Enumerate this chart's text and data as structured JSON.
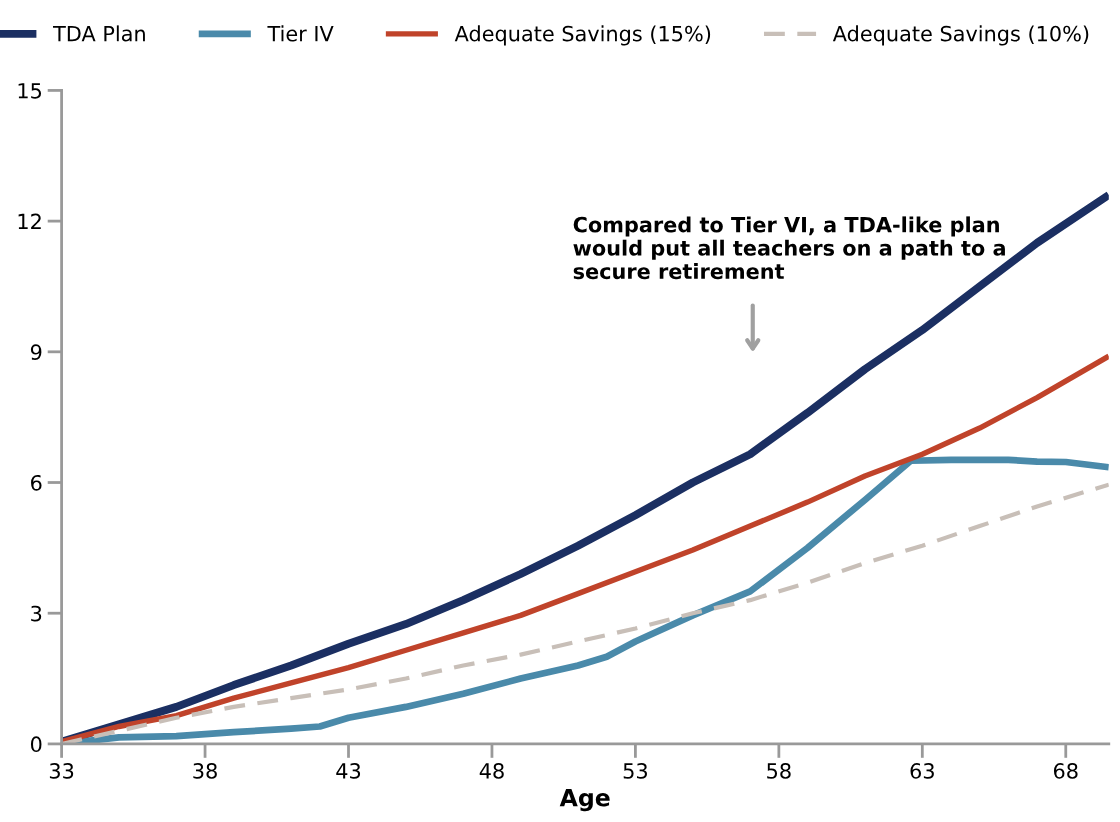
{
  "chart_data": {
    "type": "line",
    "xlabel": "Age",
    "xlim": [
      33,
      69.5
    ],
    "xticks": [
      33,
      38,
      43,
      48,
      53,
      58,
      63,
      68
    ],
    "ylim": [
      0,
      15
    ],
    "yticks": [
      0,
      3,
      6,
      9,
      12,
      15
    ],
    "grid": false,
    "legend": "top",
    "marker": "none",
    "annotations": [
      "Compared to Tier VI, a TDA-like plan would put all teachers on a path to a secure retirement"
    ],
    "series": [
      {
        "name": "TDA Plan",
        "color": "#1b2f62",
        "x": [
          33,
          35,
          37,
          39,
          41,
          43,
          45,
          47,
          49,
          51,
          53,
          55,
          57,
          59,
          61,
          63,
          65,
          67,
          69.5
        ],
        "values": [
          0.05,
          0.45,
          0.85,
          1.35,
          1.8,
          2.3,
          2.75,
          3.3,
          3.9,
          4.55,
          5.25,
          6.0,
          6.65,
          7.6,
          8.6,
          9.5,
          10.5,
          11.5,
          12.6
        ]
      },
      {
        "name": "Tier IV",
        "color": "#4a8aaa",
        "x": [
          33,
          35,
          37,
          39,
          41,
          42,
          43,
          45,
          47,
          49,
          51,
          52,
          53,
          55,
          57,
          59,
          61,
          62.6,
          64,
          66,
          67,
          68,
          69.5
        ],
        "values": [
          0,
          0.15,
          0.18,
          0.27,
          0.35,
          0.4,
          0.6,
          0.85,
          1.15,
          1.5,
          1.8,
          2.0,
          2.35,
          2.95,
          3.5,
          4.5,
          5.6,
          6.5,
          6.52,
          6.52,
          6.48,
          6.47,
          6.35
        ]
      },
      {
        "name": "Adequate Savings (15%)",
        "color": "#c0432a",
        "x": [
          33,
          35,
          37,
          39,
          41,
          43,
          45,
          47,
          49,
          51,
          53,
          55,
          57,
          59,
          61,
          63,
          65,
          67,
          69.5
        ],
        "values": [
          0.05,
          0.4,
          0.65,
          1.05,
          1.4,
          1.75,
          2.15,
          2.55,
          2.95,
          3.45,
          3.95,
          4.45,
          5.0,
          5.55,
          6.15,
          6.65,
          7.25,
          7.95,
          8.9
        ]
      },
      {
        "name": "Adequate Savings (10%)",
        "color": "#c8bfb8",
        "line_style": "dashed",
        "x": [
          33,
          35,
          37,
          39,
          41,
          43,
          45,
          47,
          49,
          51,
          53,
          55,
          57,
          59,
          61,
          63,
          65,
          67,
          69.5
        ],
        "values": [
          0,
          0.3,
          0.6,
          0.85,
          1.05,
          1.25,
          1.5,
          1.8,
          2.05,
          2.35,
          2.65,
          3.0,
          3.3,
          3.7,
          4.15,
          4.55,
          5.0,
          5.45,
          5.95
        ]
      }
    ]
  }
}
